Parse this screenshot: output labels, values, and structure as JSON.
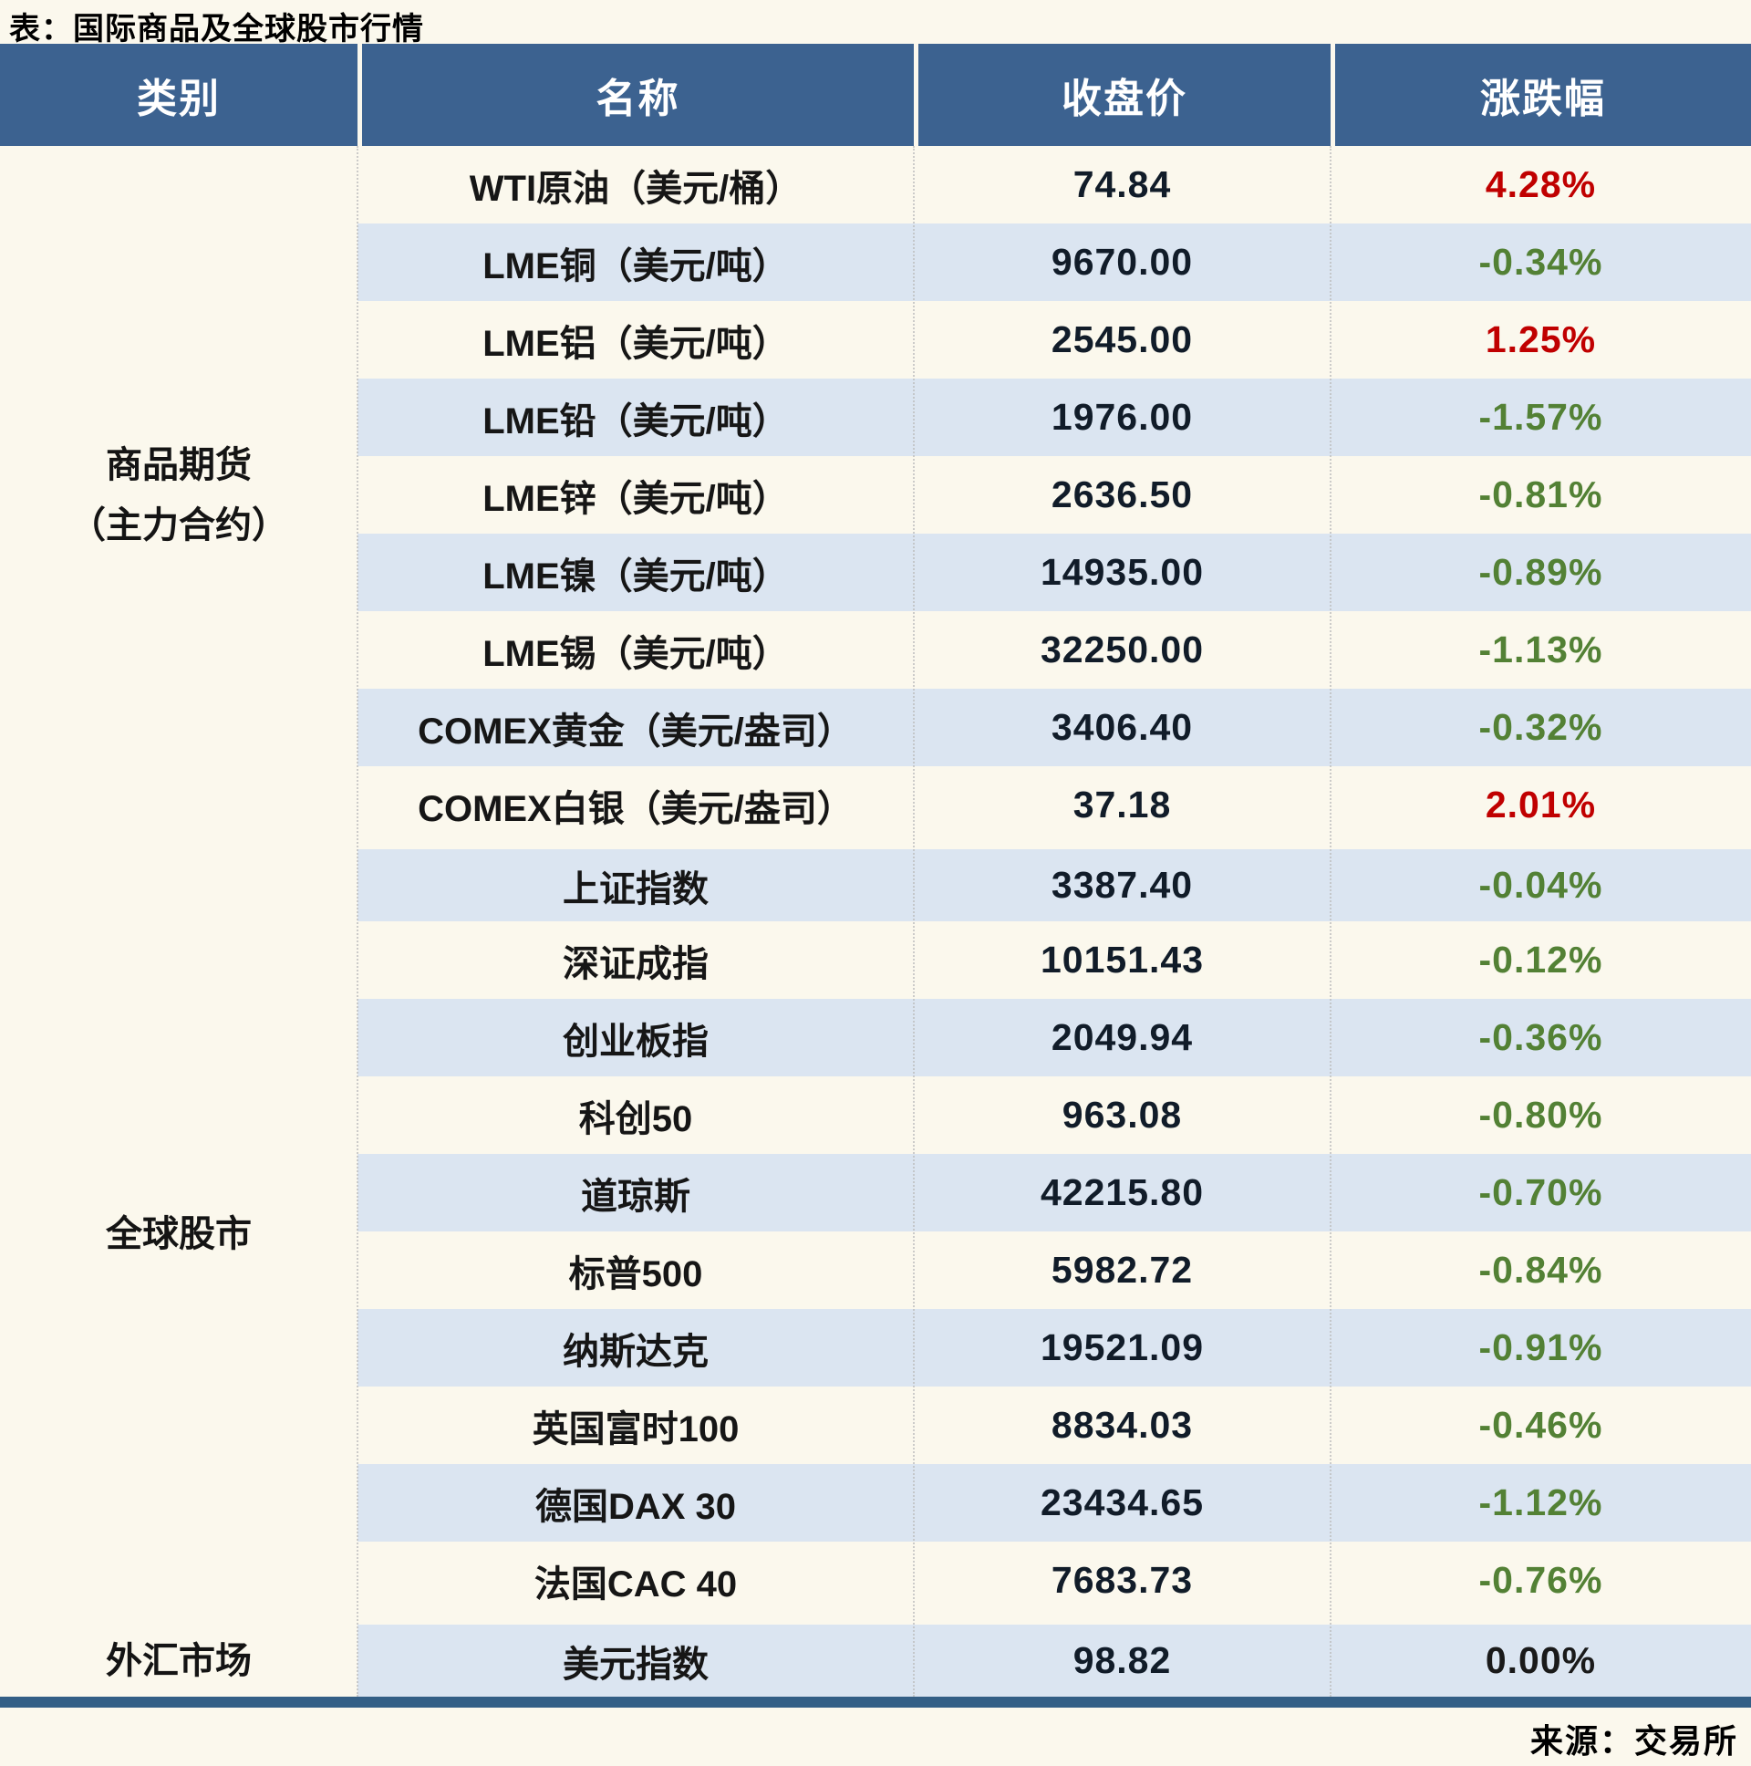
{
  "page": {
    "title": "表：国际商品及全球股市行情",
    "source": "来源：交易所"
  },
  "table": {
    "headers": [
      "类别",
      "名称",
      "收盘价",
      "涨跌幅"
    ],
    "colors": {
      "header_bg": "#3c6290",
      "alt_row_bg": "#dbe5f1",
      "up_color": "#c00000",
      "down_color": "#538135",
      "flat_color": "#1a1a1a",
      "bottom_border": "#335f86"
    },
    "groups": [
      {
        "category_lines": [
          "商品期货",
          "（主力合约）"
        ],
        "rows": [
          {
            "name": "WTI原油（美元/桶）",
            "close": "74.84",
            "change": "4.28%",
            "dir": "up"
          },
          {
            "name": "LME铜（美元/吨）",
            "close": "9670.00",
            "change": "-0.34%",
            "dir": "down"
          },
          {
            "name": "LME铝（美元/吨）",
            "close": "2545.00",
            "change": "1.25%",
            "dir": "up"
          },
          {
            "name": "LME铅（美元/吨）",
            "close": "1976.00",
            "change": "-1.57%",
            "dir": "down"
          },
          {
            "name": "LME锌（美元/吨）",
            "close": "2636.50",
            "change": "-0.81%",
            "dir": "down"
          },
          {
            "name": "LME镍（美元/吨）",
            "close": "14935.00",
            "change": "-0.89%",
            "dir": "down"
          },
          {
            "name": "LME锡（美元/吨）",
            "close": "32250.00",
            "change": "-1.13%",
            "dir": "down"
          },
          {
            "name": "COMEX黄金（美元/盎司）",
            "close": "3406.40",
            "change": "-0.32%",
            "dir": "down"
          },
          {
            "name": "COMEX白银（美元/盎司）",
            "close": "37.18",
            "change": "2.01%",
            "dir": "up"
          }
        ]
      },
      {
        "category_lines": [
          "全球股市"
        ],
        "rows": [
          {
            "name": "上证指数",
            "close": "3387.40",
            "change": "-0.04%",
            "dir": "down"
          },
          {
            "name": "深证成指",
            "close": "10151.43",
            "change": "-0.12%",
            "dir": "down"
          },
          {
            "name": "创业板指",
            "close": "2049.94",
            "change": "-0.36%",
            "dir": "down"
          },
          {
            "name": "科创50",
            "close": "963.08",
            "change": "-0.80%",
            "dir": "down"
          },
          {
            "name": "道琼斯",
            "close": "42215.80",
            "change": "-0.70%",
            "dir": "down"
          },
          {
            "name": "标普500",
            "close": "5982.72",
            "change": "-0.84%",
            "dir": "down"
          },
          {
            "name": "纳斯达克",
            "close": "19521.09",
            "change": "-0.91%",
            "dir": "down"
          },
          {
            "name": "英国富时100",
            "close": "8834.03",
            "change": "-0.46%",
            "dir": "down"
          },
          {
            "name": "德国DAX 30",
            "close": "23434.65",
            "change": "-1.12%",
            "dir": "down"
          },
          {
            "name": "法国CAC 40",
            "close": "7683.73",
            "change": "-0.76%",
            "dir": "down"
          }
        ]
      },
      {
        "category_lines": [
          "外汇市场"
        ],
        "rows": [
          {
            "name": "美元指数",
            "close": "98.82",
            "change": "0.00%",
            "dir": "flat"
          }
        ]
      }
    ]
  },
  "chart_data": {
    "type": "table",
    "title": "表：国际商品及全球股市行情",
    "source": "来源：交易所",
    "columns": [
      "类别",
      "名称",
      "收盘价",
      "涨跌幅"
    ],
    "rows": [
      [
        "商品期货（主力合约）",
        "WTI原油（美元/桶）",
        74.84,
        "4.28%"
      ],
      [
        "商品期货（主力合约）",
        "LME铜（美元/吨）",
        9670.0,
        "-0.34%"
      ],
      [
        "商品期货（主力合约）",
        "LME铝（美元/吨）",
        2545.0,
        "1.25%"
      ],
      [
        "商品期货（主力合约）",
        "LME铅（美元/吨）",
        1976.0,
        "-1.57%"
      ],
      [
        "商品期货（主力合约）",
        "LME锌（美元/吨）",
        2636.5,
        "-0.81%"
      ],
      [
        "商品期货（主力合约）",
        "LME镍（美元/吨）",
        14935.0,
        "-0.89%"
      ],
      [
        "商品期货（主力合约）",
        "LME锡（美元/吨）",
        32250.0,
        "-1.13%"
      ],
      [
        "商品期货（主力合约）",
        "COMEX黄金（美元/盎司）",
        3406.4,
        "-0.32%"
      ],
      [
        "商品期货（主力合约）",
        "COMEX白银（美元/盎司）",
        37.18,
        "2.01%"
      ],
      [
        "全球股市",
        "上证指数",
        3387.4,
        "-0.04%"
      ],
      [
        "全球股市",
        "深证成指",
        10151.43,
        "-0.12%"
      ],
      [
        "全球股市",
        "创业板指",
        2049.94,
        "-0.36%"
      ],
      [
        "全球股市",
        "科创50",
        963.08,
        "-0.80%"
      ],
      [
        "全球股市",
        "道琼斯",
        42215.8,
        "-0.70%"
      ],
      [
        "全球股市",
        "标普500",
        5982.72,
        "-0.84%"
      ],
      [
        "全球股市",
        "纳斯达克",
        19521.09,
        "-0.91%"
      ],
      [
        "全球股市",
        "英国富时100",
        8834.03,
        "-0.46%"
      ],
      [
        "全球股市",
        "德国DAX 30",
        23434.65,
        "-1.12%"
      ],
      [
        "全球股市",
        "法国CAC 40",
        7683.73,
        "-0.76%"
      ],
      [
        "外汇市场",
        "美元指数",
        98.82,
        "0.00%"
      ]
    ]
  }
}
